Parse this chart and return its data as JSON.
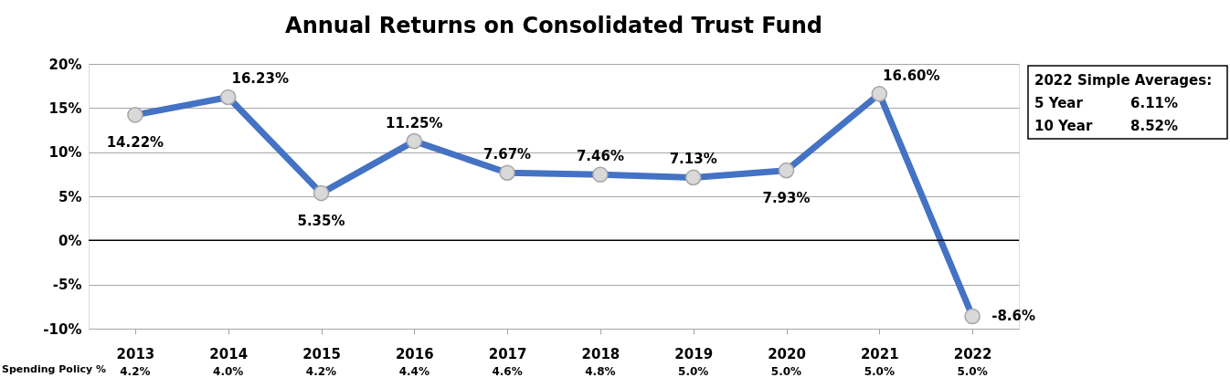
{
  "chart_data": {
    "type": "line",
    "title": "Annual Returns on Consolidated Trust Fund",
    "categories": [
      "2013",
      "2014",
      "2015",
      "2016",
      "2017",
      "2018",
      "2019",
      "2020",
      "2021",
      "2022"
    ],
    "series": [
      {
        "color": "#4472c4",
        "values": [
          14.22,
          16.23,
          5.35,
          11.25,
          7.67,
          7.46,
          7.13,
          7.93,
          16.6,
          -8.6
        ],
        "value_labels": [
          "14.22%",
          "16.23%",
          "5.35%",
          "11.25%",
          "7.67%",
          "7.46%",
          "7.13%",
          "7.93%",
          "16.60%",
          "-8.6%"
        ]
      }
    ],
    "ylim": [
      -10,
      20
    ],
    "yticks": [
      {
        "value": -10,
        "label": "-10%"
      },
      {
        "value": -5,
        "label": "-5%"
      },
      {
        "value": 0,
        "label": "0%"
      },
      {
        "value": 5,
        "label": "5%"
      },
      {
        "value": 10,
        "label": "10%"
      },
      {
        "value": 15,
        "label": "15%"
      },
      {
        "value": 20,
        "label": "20%"
      }
    ],
    "grid": "y",
    "marker": "circle",
    "line_style": "solid",
    "ref_lines": [
      {
        "axis": "y",
        "value": 0,
        "color": "#000000"
      }
    ],
    "annotations": [
      "2022 Simple Averages:",
      "5 Year",
      "6.11%",
      "10 Year",
      "8.52%",
      "Spending Policy %",
      "4.2%",
      "4.0%",
      "4.2%",
      "4.4%",
      "4.6%",
      "4.8%",
      "5.0%",
      "5.0%",
      "5.0%",
      "5.0%"
    ]
  }
}
